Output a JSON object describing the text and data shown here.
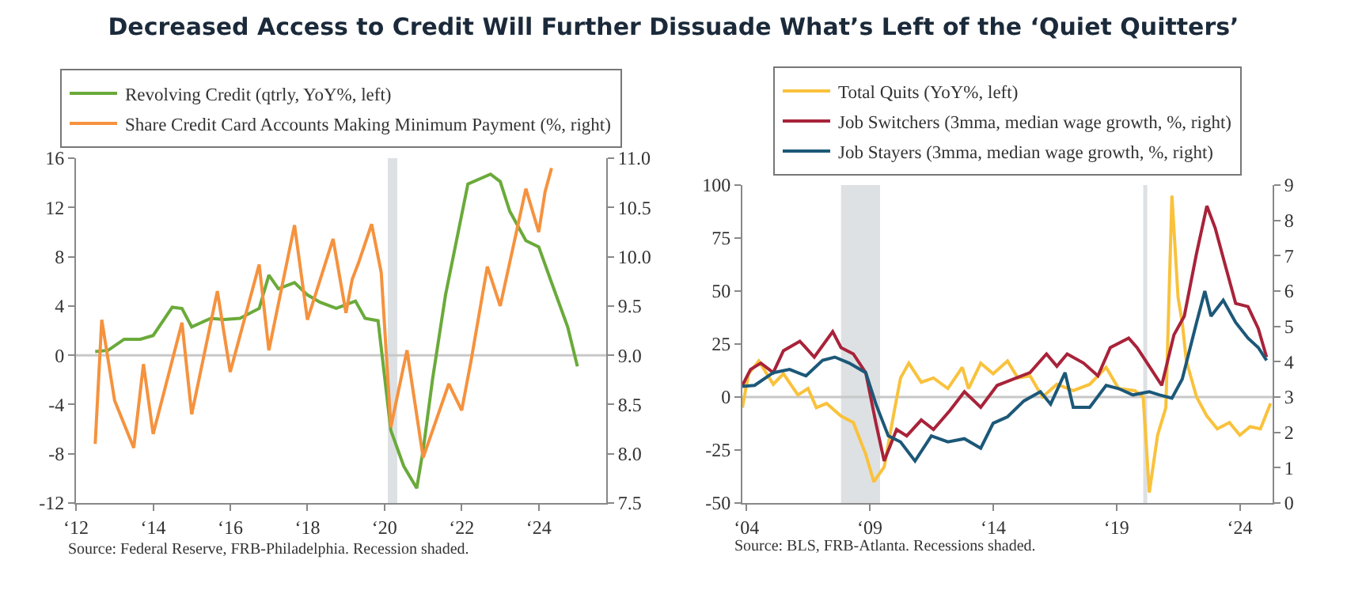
{
  "chart_data": [
    {
      "type": "line",
      "title": "Decreased Access to Credit Will Further Dissuade What’s Left of the ‘Quiet Quitters’",
      "xlim": [
        "2012-01",
        "2025-10"
      ],
      "xticks": [
        {
          "value": "2012",
          "label": "‘12"
        },
        {
          "value": "2014",
          "label": "‘14"
        },
        {
          "value": "2016",
          "label": "‘16"
        },
        {
          "value": "2018",
          "label": "‘18"
        },
        {
          "value": "2020",
          "label": "‘20"
        },
        {
          "value": "2022",
          "label": "‘22"
        },
        {
          "value": "2024",
          "label": "‘24"
        }
      ],
      "ylim": [
        -12,
        16
      ],
      "yticks": [
        -12,
        -8,
        -4,
        0,
        4,
        8,
        12,
        16
      ],
      "y2lim": [
        7.5,
        11
      ],
      "y2ticks": [
        {
          "value": 7.5,
          "label": "7.5"
        },
        {
          "value": 8,
          "label": "8.0"
        },
        {
          "value": 8.5,
          "label": "8.5"
        },
        {
          "value": 9,
          "label": "9.0"
        },
        {
          "value": 9.5,
          "label": "9.5"
        },
        {
          "value": 10,
          "label": "10.0"
        },
        {
          "value": 10.5,
          "label": "10.5"
        },
        {
          "value": 11,
          "label": "11.0"
        }
      ],
      "legend": "top",
      "grid": false,
      "ref_lines": [
        {
          "axis": "y",
          "value": 0,
          "color": "#c8c8c8"
        }
      ],
      "bands": [
        {
          "axis": "x",
          "from": "2020-02",
          "to": "2020-05",
          "color": "#dde1e4"
        }
      ],
      "annotations": [
        "Source: Federal Reserve, FRB-Philadelphia. Recession shaded."
      ],
      "series": [
        {
          "name": "Revolving Credit (qtrly, YoY%, left)",
          "color": "#6aaa3a",
          "x": [
            "2012-07",
            "2012-11",
            "2013-04",
            "2013-09",
            "2014-01",
            "2014-07",
            "2014-10",
            "2015-01",
            "2015-07",
            "2015-11",
            "2016-04",
            "2016-10",
            "2017-01",
            "2017-04",
            "2017-09",
            "2018-01",
            "2018-05",
            "2018-10",
            "2019-04",
            "2019-07",
            "2019-11",
            "2020-03",
            "2020-07",
            "2020-11",
            "2021-01",
            "2021-04",
            "2021-08",
            "2022-03",
            "2022-10",
            "2023-01",
            "2023-04",
            "2023-09",
            "2024-01",
            "2024-05",
            "2024-10",
            "2025-01"
          ],
          "values": [
            0.3,
            0.4,
            1.3,
            1.3,
            1.6,
            3.9,
            3.8,
            2.3,
            3.0,
            2.9,
            3.0,
            3.8,
            6.5,
            5.4,
            5.9,
            4.9,
            4.3,
            3.8,
            4.4,
            3.0,
            2.8,
            -6.1,
            -9.0,
            -10.8,
            -7.7,
            -1.9,
            4.9,
            13.9,
            14.7,
            14.1,
            11.7,
            9.3,
            8.8,
            5.9,
            2.3,
            -0.9
          ]
        },
        {
          "name": "Share Credit Card Accounts Making Minimum Payment (%, right)",
          "color": "#f5923e",
          "axis": "y2",
          "x": [
            "2012-07",
            "2012-09",
            "2013-01",
            "2013-07",
            "2013-10",
            "2014-01",
            "2014-10",
            "2015-01",
            "2015-09",
            "2016-01",
            "2016-10",
            "2017-01",
            "2017-09",
            "2018-01",
            "2018-09",
            "2019-01",
            "2019-03",
            "2019-05",
            "2019-09",
            "2019-12",
            "2020-03",
            "2020-08",
            "2021-01",
            "2021-09",
            "2022-01",
            "2022-04",
            "2022-09",
            "2023-01",
            "2023-09",
            "2024-01",
            "2024-03",
            "2024-05"
          ],
          "values": [
            8.1,
            9.36,
            8.54,
            8.06,
            8.91,
            8.2,
            9.33,
            8.4,
            9.65,
            8.83,
            9.92,
            9.05,
            10.32,
            9.36,
            10.18,
            9.43,
            9.77,
            9.94,
            10.33,
            9.84,
            8.27,
            9.05,
            7.96,
            8.71,
            8.44,
            8.95,
            9.9,
            9.5,
            10.69,
            10.25,
            10.66,
            10.9
          ]
        }
      ]
    },
    {
      "type": "line",
      "xlim": [
        "2003-11",
        "2025-05"
      ],
      "xticks": [
        {
          "value": "2004",
          "label": "‘04"
        },
        {
          "value": "2009",
          "label": "‘09"
        },
        {
          "value": "2014",
          "label": "‘14"
        },
        {
          "value": "2019",
          "label": "‘19"
        },
        {
          "value": "2024",
          "label": "‘24"
        }
      ],
      "ylim": [
        -50,
        100
      ],
      "yticks": [
        -50,
        -25,
        0,
        25,
        50,
        75,
        100
      ],
      "y2lim": [
        0,
        9
      ],
      "y2ticks": [
        0,
        1,
        2,
        3,
        4,
        5,
        6,
        7,
        8,
        9
      ],
      "legend": "top",
      "grid": false,
      "ref_lines": [
        {
          "axis": "y",
          "value": 0,
          "color": "#c8c8c8"
        }
      ],
      "bands": [
        {
          "axis": "x",
          "from": "2007-11",
          "to": "2009-06",
          "color": "#dde1e4"
        },
        {
          "axis": "x",
          "from": "2020-02",
          "to": "2020-04",
          "color": "#dde1e4"
        }
      ],
      "annotations": [
        "Source: BLS, FRB-Atlanta. Recessions shaded."
      ],
      "series": [
        {
          "name": "Total Quits (YoY%, left)",
          "color": "#f9c23c",
          "x": [
            "2003-11",
            "2004-02",
            "2004-07",
            "2005-02",
            "2005-07",
            "2006-02",
            "2006-07",
            "2006-11",
            "2007-04",
            "2007-11",
            "2008-05",
            "2008-11",
            "2009-03",
            "2009-08",
            "2010-01",
            "2010-04",
            "2010-08",
            "2011-02",
            "2011-08",
            "2012-03",
            "2012-10",
            "2013-01",
            "2013-07",
            "2014-01",
            "2014-08",
            "2015-01",
            "2015-07",
            "2016-01",
            "2016-08",
            "2017-04",
            "2017-12",
            "2018-08",
            "2019-02",
            "2019-10",
            "2020-02",
            "2020-05",
            "2020-09",
            "2021-01",
            "2021-04",
            "2021-07",
            "2021-09",
            "2021-11",
            "2022-04",
            "2022-09",
            "2023-02",
            "2023-08",
            "2024-01",
            "2024-06",
            "2024-11",
            "2025-04"
          ],
          "values": [
            -5,
            11,
            17,
            6,
            11,
            1,
            4,
            -5,
            -3,
            -9,
            -12,
            -27,
            -40,
            -33,
            -6,
            9,
            16,
            7,
            9,
            4,
            14,
            4,
            16,
            11,
            17,
            9,
            10,
            0,
            6,
            3,
            6,
            14,
            4,
            3,
            0,
            -45,
            -18,
            -5,
            95,
            47,
            35,
            17,
            0,
            -9,
            -15,
            -12,
            -18,
            -14,
            -15,
            -3
          ]
        },
        {
          "name": "Job Switchers (3mma, median wage growth, %, right)",
          "color": "#a8233a",
          "axis": "y2",
          "x": [
            "2003-11",
            "2004-03",
            "2004-08",
            "2005-02",
            "2005-07",
            "2006-03",
            "2006-10",
            "2007-07",
            "2007-11",
            "2008-05",
            "2008-11",
            "2009-04",
            "2009-08",
            "2010-02",
            "2010-07",
            "2011-02",
            "2011-08",
            "2012-04",
            "2012-11",
            "2013-07",
            "2014-03",
            "2014-11",
            "2015-07",
            "2016-03",
            "2016-08",
            "2017-01",
            "2017-09",
            "2018-04",
            "2018-10",
            "2019-07",
            "2019-11",
            "2020-05",
            "2020-11",
            "2021-05",
            "2021-10",
            "2022-04",
            "2022-09",
            "2023-01",
            "2023-06",
            "2023-11",
            "2024-05",
            "2024-10",
            "2025-02"
          ],
          "values": [
            3.33,
            3.78,
            3.96,
            3.69,
            4.31,
            4.58,
            4.13,
            4.85,
            4.4,
            4.22,
            3.69,
            2.26,
            1.19,
            2.08,
            1.9,
            2.35,
            2.08,
            2.62,
            3.15,
            2.71,
            3.33,
            3.51,
            3.69,
            4.22,
            3.87,
            4.22,
            3.96,
            3.6,
            4.4,
            4.67,
            4.4,
            3.87,
            3.33,
            4.76,
            5.29,
            7.07,
            8.41,
            7.79,
            6.72,
            5.65,
            5.56,
            4.94,
            4.13
          ]
        },
        {
          "name": "Job Stayers (3mma, median wage growth, %, right)",
          "color": "#1c5878",
          "axis": "y2",
          "x": [
            "2003-11",
            "2004-05",
            "2005-02",
            "2005-10",
            "2006-06",
            "2007-02",
            "2007-08",
            "2008-03",
            "2008-11",
            "2009-04",
            "2009-10",
            "2010-04",
            "2010-11",
            "2011-07",
            "2012-03",
            "2012-11",
            "2013-07",
            "2014-01",
            "2014-08",
            "2015-04",
            "2015-12",
            "2016-05",
            "2016-12",
            "2017-04",
            "2017-12",
            "2018-08",
            "2019-02",
            "2019-09",
            "2020-05",
            "2020-10",
            "2021-04",
            "2021-09",
            "2022-04",
            "2022-08",
            "2022-11",
            "2023-05",
            "2023-11",
            "2024-05",
            "2024-10",
            "2025-02"
          ],
          "values": [
            3.3,
            3.33,
            3.69,
            3.78,
            3.6,
            4.04,
            4.13,
            3.96,
            3.69,
            2.8,
            1.9,
            1.73,
            1.19,
            1.9,
            1.73,
            1.82,
            1.55,
            2.26,
            2.44,
            2.89,
            3.15,
            2.8,
            3.69,
            2.71,
            2.71,
            3.33,
            3.24,
            3.06,
            3.15,
            3.06,
            2.97,
            3.51,
            5.11,
            6.0,
            5.29,
            5.74,
            5.11,
            4.67,
            4.4,
            4.04
          ]
        }
      ]
    }
  ]
}
